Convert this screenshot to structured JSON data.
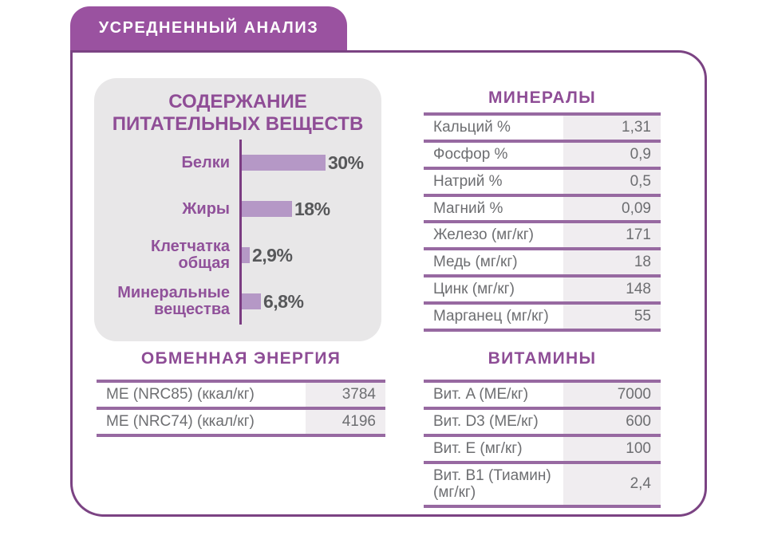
{
  "header": {
    "title": "УСРЕДНЕННЫЙ АНАЛИЗ"
  },
  "colors": {
    "tab_purple": "#9a52a0",
    "card_border": "#7b4383",
    "heading_purple": "#8e4d96",
    "bar_fill": "#b598c6",
    "axis_purple": "#7b3c82",
    "separator_purple": "#9769a1",
    "chart_value_text": "#57585a",
    "table_text": "#6d6e71",
    "panel_bg": "#e8e7e8",
    "value_cell_bg": "#f0edf0"
  },
  "chart_data": {
    "type": "bar",
    "orientation": "horizontal",
    "title": "СОДЕРЖАНИЕ ПИТАТЕЛЬНЫХ ВЕЩЕСТВ",
    "categories": [
      "Белки",
      "Жиры",
      "Клетчатка общая",
      "Минеральные вещества"
    ],
    "categories_wrapped": [
      "Белки",
      "Жиры",
      "Клетчатка\nобщая",
      "Минеральные\nвещества"
    ],
    "values": [
      30,
      18,
      2.9,
      6.8
    ],
    "value_labels": [
      "30%",
      "18%",
      "2,9%",
      "6,8%"
    ],
    "unit": "%",
    "xlim": [
      0,
      30
    ],
    "grid": false,
    "legend": false
  },
  "energy": {
    "title": "ОБМЕННАЯ ЭНЕРГИЯ",
    "rows": [
      {
        "label": "ME (NRC85) (ккал/кг)",
        "value": "3784"
      },
      {
        "label": "ME (NRC74) (ккал/кг)",
        "value": "4196"
      }
    ]
  },
  "minerals": {
    "title": "МИНЕРАЛЫ",
    "rows": [
      {
        "label": "Кальций %",
        "value": "1,31"
      },
      {
        "label": "Фосфор %",
        "value": "0,9"
      },
      {
        "label": "Натрий %",
        "value": "0,5"
      },
      {
        "label": "Магний %",
        "value": "0,09"
      },
      {
        "label": "Железо (мг/кг)",
        "value": "171"
      },
      {
        "label": "Медь (мг/кг)",
        "value": "18"
      },
      {
        "label": "Цинк (мг/кг)",
        "value": "148"
      },
      {
        "label": "Марганец (мг/кг)",
        "value": "55"
      }
    ]
  },
  "vitamins": {
    "title": "ВИТАМИНЫ",
    "rows": [
      {
        "label": "Вит. A (МЕ/кг)",
        "value": "7000"
      },
      {
        "label": "Вит. D3 (МЕ/кг)",
        "value": "600"
      },
      {
        "label": "Вит. E (мг/кг)",
        "value": "100"
      },
      {
        "label": "Вит. B1 (Тиамин) (мг/кг)",
        "value": "2,4"
      }
    ]
  }
}
